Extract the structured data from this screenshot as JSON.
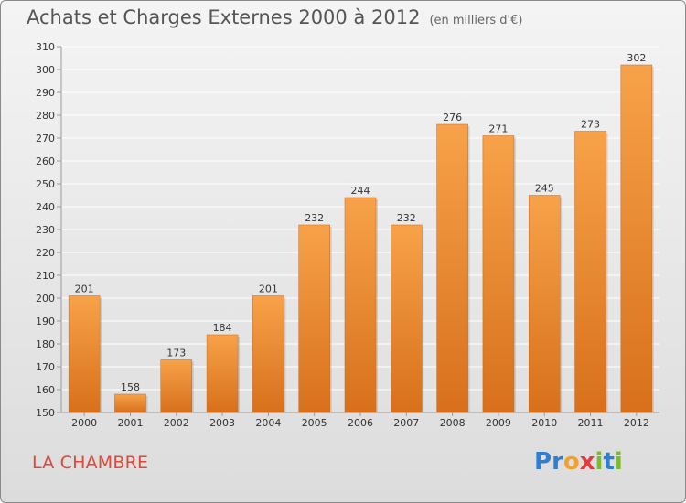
{
  "header": {
    "title": "Achats et Charges Externes 2000 à 2012",
    "subtitle": "(en milliers d'€)"
  },
  "footer": {
    "commune": "LA CHAMBRE",
    "logo_letters": [
      {
        "char": "P",
        "color": "#2f7fd0"
      },
      {
        "char": "r",
        "color": "#2f7fd0"
      },
      {
        "char": "o",
        "color": "#f2a22c"
      },
      {
        "char": "x",
        "color": "#e23b3b"
      },
      {
        "char": "i",
        "color": "#7dbb2e"
      },
      {
        "char": "t",
        "color": "#2f7fd0"
      },
      {
        "char": "i",
        "color": "#7dbb2e"
      }
    ]
  },
  "colors": {
    "bar_top": "#f7a24a",
    "bar_bottom": "#d8701b",
    "grid": "#ffffff",
    "axis": "#9a9a9a"
  },
  "chart_data": {
    "type": "bar",
    "title": "Achats et Charges Externes 2000 à 2012",
    "subtitle": "(en milliers d'€)",
    "xlabel": "",
    "ylabel": "",
    "categories": [
      "2000",
      "2001",
      "2002",
      "2003",
      "2004",
      "2005",
      "2006",
      "2007",
      "2008",
      "2009",
      "2010",
      "2011",
      "2012"
    ],
    "values": [
      201,
      158,
      173,
      184,
      201,
      232,
      244,
      232,
      276,
      271,
      245,
      273,
      302
    ],
    "ylim": [
      150,
      310
    ],
    "yticks": [
      150,
      160,
      170,
      180,
      190,
      200,
      210,
      220,
      230,
      240,
      250,
      260,
      270,
      280,
      290,
      300,
      310
    ],
    "grid": true,
    "legend": "none"
  }
}
